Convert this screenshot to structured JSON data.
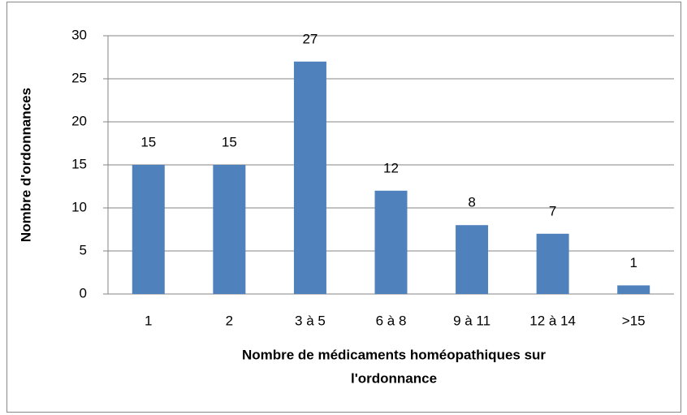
{
  "chart_data": {
    "type": "bar",
    "categories": [
      "1",
      "2",
      "3 à 5",
      "6 à 8",
      "9 à 11",
      "12 à 14",
      ">15"
    ],
    "values": [
      15,
      15,
      27,
      12,
      8,
      7,
      1
    ],
    "color": "#4f81bd",
    "ylim": [
      0,
      30
    ],
    "yticks": [
      0,
      5,
      10,
      15,
      20,
      25,
      30
    ],
    "grid": true,
    "ylabel": "Nombre d'ordonnances",
    "xlabel": [
      "Nombre de médicaments homéopathiques sur",
      "l'ordonnance"
    ]
  }
}
